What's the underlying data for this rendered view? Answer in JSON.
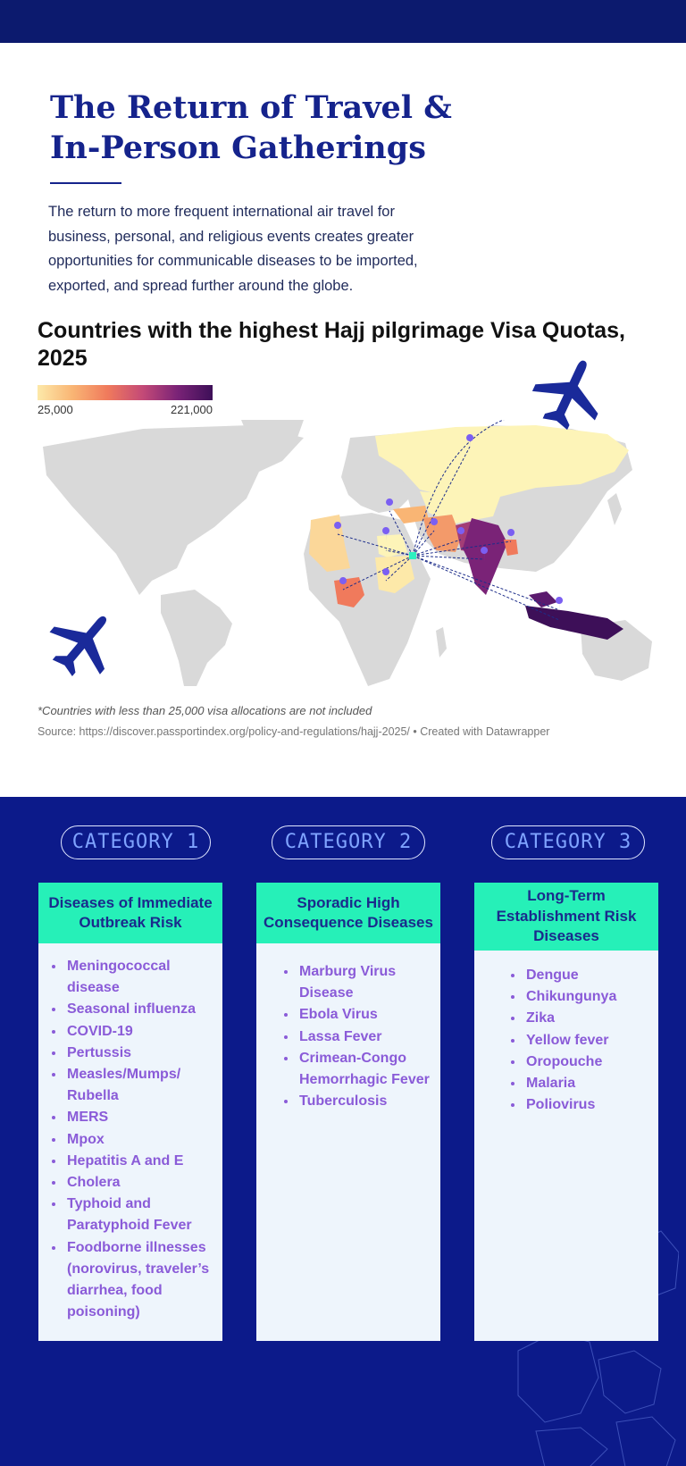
{
  "header": {
    "title_line1": "The Return of Travel &",
    "title_line2": "In-Person Gatherings",
    "intro": "The return to more frequent international air travel for business, personal, and religious events creates greater opportunities for communicable diseases to be imported, exported, and spread further around the globe."
  },
  "map": {
    "title": "Countries with the highest Hajj pilgrimage Visa Quotas, 2025",
    "legend_min": "25,000",
    "legend_max": "221,000",
    "scale_colors": [
      "#fde9a9",
      "#f9b574",
      "#f07a5c",
      "#c44a77",
      "#7a2377",
      "#3d0f58"
    ],
    "note": "*Countries with less than 25,000 visa allocations are not included",
    "source": "Source: https://discover.passportindex.org/policy-and-regulations/hajj-2025/ • Created with Datawrapper",
    "icons": [
      "airplane-icon",
      "map-pin-icon"
    ]
  },
  "categories": [
    {
      "label": "CATEGORY  1",
      "heading": "Diseases of Immediate Outbreak Risk",
      "items": [
        "Meningococcal disease",
        "Seasonal influenza",
        "COVID-19",
        "Pertussis",
        "Measles/Mumps/ Rubella",
        "MERS",
        "Mpox",
        "Hepatitis A and E",
        "Cholera",
        "Typhoid and Paratyphoid Fever",
        "Foodborne illnesses (norovirus, traveler’s diarrhea, food poisoning)"
      ]
    },
    {
      "label": "CATEGORY  2",
      "heading": "Sporadic High Consequence Diseases",
      "items": [
        "Marburg Virus Disease",
        "Ebola Virus",
        "Lassa Fever",
        "Crimean-Congo Hemorrhagic Fever",
        "Tuberculosis"
      ]
    },
    {
      "label": "CATEGORY  3",
      "heading": "Long-Term Establishment Risk Diseases",
      "items": [
        "Dengue",
        "Chikungunya",
        "Zika",
        "Yellow fever",
        "Oropouche",
        "Malaria",
        "Poliovirus"
      ]
    }
  ],
  "colors": {
    "navy": "#0c1a6e",
    "panel": "#0c1a8a",
    "accent_teal": "#26f0b8",
    "list_purple": "#8a5bd8",
    "pill_text": "#7fa3ff"
  }
}
